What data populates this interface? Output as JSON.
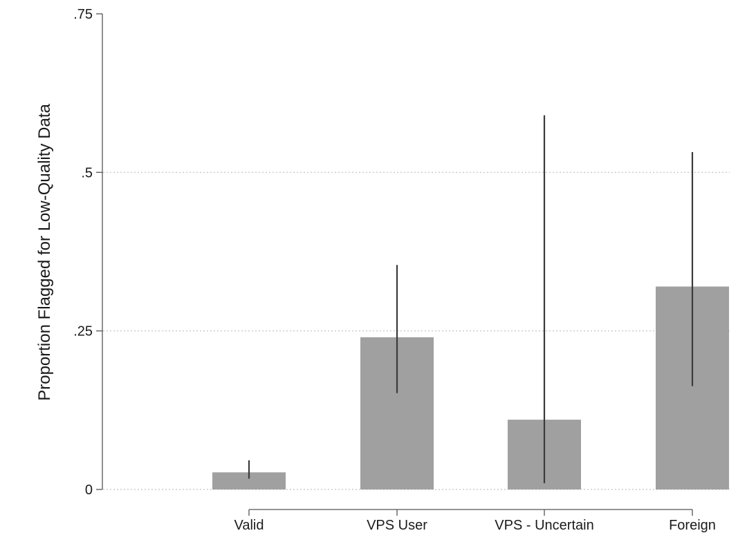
{
  "chart_data": {
    "type": "bar",
    "title": "",
    "xlabel": "",
    "ylabel": "Proportion Flagged for Low-Quality Data",
    "categories": [
      "Valid",
      "VPS User",
      "VPS - Uncertain",
      "Foreign"
    ],
    "values": [
      0.027,
      0.24,
      0.11,
      0.32
    ],
    "error_bars": {
      "lower": [
        0.017,
        0.152,
        0.01,
        0.163
      ],
      "upper": [
        0.046,
        0.354,
        0.59,
        0.532
      ]
    },
    "ylim": [
      0,
      0.75
    ],
    "yticks": [
      0,
      0.25,
      0.5,
      0.75
    ],
    "ytick_labels": [
      "0",
      ".25",
      ".5",
      ".75"
    ],
    "grid": "horizontal dotted",
    "colors": {
      "bar": "#a0a0a0",
      "error_bar": "#3a3a3a",
      "axis": "#555555",
      "grid": "#cccccc",
      "background": "#ffffff"
    }
  }
}
